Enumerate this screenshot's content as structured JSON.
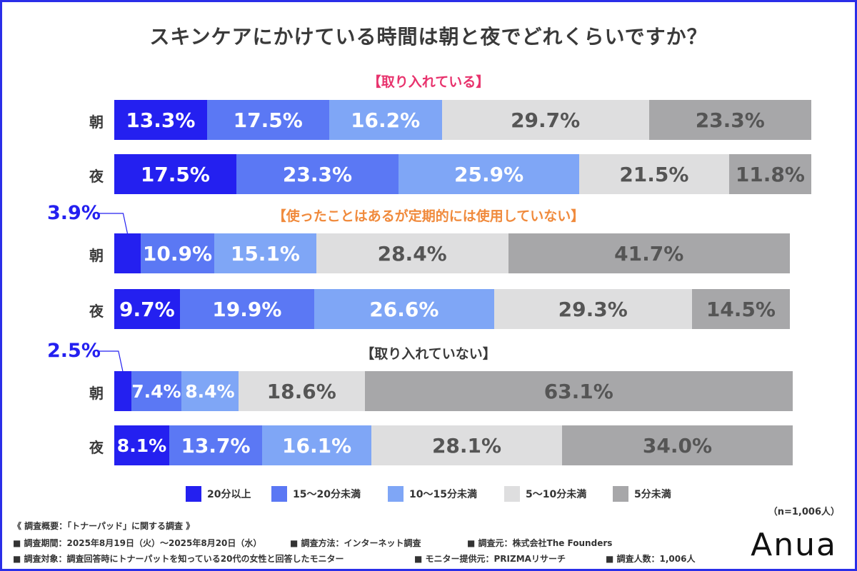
{
  "colors": {
    "frame": "#2a2ee8",
    "accent_section1": "#e8336d",
    "accent_section2": "#f08a3c",
    "accent_section3": "#3a3a3a",
    "series": [
      "#2420f0",
      "#5b78f4",
      "#7fa6f6",
      "#dededf",
      "#a7a7a9"
    ],
    "series_text": [
      "#ffffff",
      "#ffffff",
      "#ffffff",
      "#555555",
      "#555555"
    ]
  },
  "chart_data": {
    "type": "bar",
    "orientation": "horizontal-stacked-100",
    "title": "スキンケアにかけている時間は朝と夜でどれくらいですか？",
    "legend_placement": "bottom",
    "series_names": [
      "20分以上",
      "15〜20分未満",
      "10〜15分未満",
      "5〜10分未満",
      "5分未満"
    ],
    "groups": [
      {
        "label": "【取り入れている】",
        "rows": [
          {
            "label": "朝",
            "values": [
              13.3,
              17.5,
              16.2,
              29.7,
              23.3
            ],
            "labels": [
              "13.3%",
              "17.5%",
              "16.2%",
              "29.7%",
              "23.3%"
            ]
          },
          {
            "label": "夜",
            "values": [
              17.5,
              23.3,
              25.9,
              21.5,
              11.8
            ],
            "labels": [
              "17.5%",
              "23.3%",
              "25.9%",
              "21.5%",
              "11.8%"
            ]
          }
        ]
      },
      {
        "label": "【使ったことはあるが定期的には使用していない】",
        "rows": [
          {
            "label": "朝",
            "values": [
              3.9,
              10.9,
              15.1,
              28.4,
              41.7
            ],
            "labels": [
              "3.9%",
              "10.9%",
              "15.1%",
              "28.4%",
              "41.7%"
            ]
          },
          {
            "label": "夜",
            "values": [
              9.7,
              19.9,
              26.6,
              29.3,
              14.5
            ],
            "labels": [
              "9.7%",
              "19.9%",
              "26.6%",
              "29.3%",
              "14.5%"
            ]
          }
        ]
      },
      {
        "label": "【取り入れていない】",
        "rows": [
          {
            "label": "朝",
            "values": [
              2.5,
              7.4,
              8.4,
              18.6,
              63.1
            ],
            "labels": [
              "2.5%",
              "7.4%",
              "8.4%",
              "18.6%",
              "63.1%"
            ]
          },
          {
            "label": "夜",
            "values": [
              8.1,
              13.7,
              16.1,
              28.1,
              34.0
            ],
            "labels": [
              "8.1%",
              "13.7%",
              "16.1%",
              "28.1%",
              "34.0%"
            ]
          }
        ]
      }
    ]
  },
  "footer": {
    "n": "（n=1,006人）",
    "lines": [
      "《 調査概要：「トナーパッド」に関する調査 》",
      "■ 調査期間：2025年8月19日（火）〜2025年8月20日（水）",
      "■ 調査方法：インターネット調査",
      "■ 調査元：株式会社The Founders",
      "■ 調査対象：調査回答時にトナーパットを知っている20代の女性と回答したモニター",
      "■ モニター提供元：PRIZMAリサーチ",
      "■ 調査人数：1,006人"
    ],
    "logo": "Anua"
  }
}
